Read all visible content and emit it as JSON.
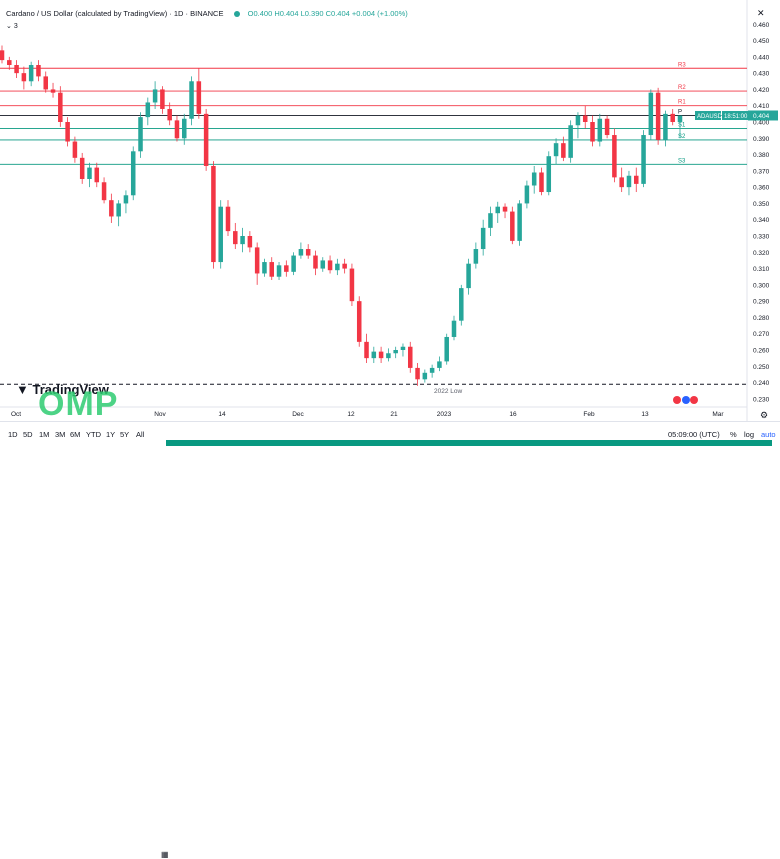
{
  "header": {
    "symbol_title": "Cardano / US Dollar (calculated by TradingView) · 1D · BINANCE",
    "ohlc": "O0.400 H0.404 L0.390 C0.404 +0.004 (+1.00%)",
    "indicator_count": "3"
  },
  "brand": {
    "logo_text": "TradingView",
    "watermark": "OMP"
  },
  "chart_data": {
    "type": "candlestick",
    "title": "Cardano / US Dollar (calculated by TradingView) · 1D · BINANCE",
    "ylim": [
      0.225,
      0.47
    ],
    "y_ticks": [
      0.23,
      0.24,
      0.25,
      0.26,
      0.27,
      0.28,
      0.29,
      0.3,
      0.31,
      0.32,
      0.33,
      0.34,
      0.35,
      0.36,
      0.37,
      0.38,
      0.39,
      0.4,
      0.41,
      0.42,
      0.43,
      0.44,
      0.45,
      0.46
    ],
    "x_ticks": [
      "Oct",
      "Nov",
      "14",
      "Dec",
      "12",
      "21",
      "2023",
      "16",
      "Feb",
      "13",
      "Mar"
    ],
    "up_color": "#26a69a",
    "down_color": "#f23645",
    "price_label": "ADAUSD",
    "last_price": "0.404",
    "countdown": "18:51:00",
    "pivot_lines": [
      {
        "label": "R3",
        "value": 0.433,
        "color": "#f23645"
      },
      {
        "label": "R2",
        "value": 0.419,
        "color": "#f23645"
      },
      {
        "label": "R1",
        "value": 0.41,
        "color": "#f23645"
      },
      {
        "label": "P",
        "value": 0.404,
        "color": "#131722"
      },
      {
        "label": "S1",
        "value": 0.396,
        "color": "#089981"
      },
      {
        "label": "S2",
        "value": 0.389,
        "color": "#089981"
      },
      {
        "label": "S3",
        "value": 0.374,
        "color": "#089981"
      }
    ],
    "annotation": {
      "label": "2022 Low",
      "value": 0.239
    },
    "candles": [
      [
        0.444,
        0.447,
        0.436,
        0.438
      ],
      [
        0.438,
        0.44,
        0.432,
        0.435
      ],
      [
        0.435,
        0.438,
        0.427,
        0.43
      ],
      [
        0.43,
        0.434,
        0.42,
        0.425
      ],
      [
        0.425,
        0.437,
        0.422,
        0.435
      ],
      [
        0.435,
        0.438,
        0.425,
        0.428
      ],
      [
        0.428,
        0.431,
        0.418,
        0.42
      ],
      [
        0.42,
        0.424,
        0.415,
        0.418
      ],
      [
        0.418,
        0.422,
        0.397,
        0.4
      ],
      [
        0.4,
        0.403,
        0.385,
        0.388
      ],
      [
        0.388,
        0.391,
        0.375,
        0.378
      ],
      [
        0.378,
        0.381,
        0.362,
        0.365
      ],
      [
        0.365,
        0.375,
        0.36,
        0.372
      ],
      [
        0.372,
        0.375,
        0.36,
        0.363
      ],
      [
        0.363,
        0.366,
        0.35,
        0.352
      ],
      [
        0.352,
        0.356,
        0.338,
        0.342
      ],
      [
        0.342,
        0.352,
        0.336,
        0.35
      ],
      [
        0.35,
        0.358,
        0.344,
        0.355
      ],
      [
        0.355,
        0.385,
        0.352,
        0.382
      ],
      [
        0.382,
        0.406,
        0.378,
        0.403
      ],
      [
        0.403,
        0.415,
        0.398,
        0.412
      ],
      [
        0.412,
        0.425,
        0.408,
        0.42
      ],
      [
        0.42,
        0.422,
        0.405,
        0.408
      ],
      [
        0.408,
        0.412,
        0.398,
        0.401
      ],
      [
        0.401,
        0.404,
        0.388,
        0.39
      ],
      [
        0.39,
        0.405,
        0.386,
        0.402
      ],
      [
        0.402,
        0.428,
        0.398,
        0.425
      ],
      [
        0.425,
        0.433,
        0.402,
        0.405
      ],
      [
        0.405,
        0.408,
        0.37,
        0.373
      ],
      [
        0.373,
        0.376,
        0.31,
        0.314
      ],
      [
        0.314,
        0.352,
        0.31,
        0.348
      ],
      [
        0.348,
        0.352,
        0.33,
        0.333
      ],
      [
        0.333,
        0.338,
        0.322,
        0.325
      ],
      [
        0.325,
        0.335,
        0.32,
        0.33
      ],
      [
        0.33,
        0.333,
        0.32,
        0.323
      ],
      [
        0.323,
        0.326,
        0.3,
        0.307
      ],
      [
        0.307,
        0.316,
        0.305,
        0.314
      ],
      [
        0.314,
        0.317,
        0.303,
        0.305
      ],
      [
        0.305,
        0.314,
        0.303,
        0.312
      ],
      [
        0.312,
        0.315,
        0.305,
        0.308
      ],
      [
        0.308,
        0.32,
        0.306,
        0.318
      ],
      [
        0.318,
        0.326,
        0.316,
        0.322
      ],
      [
        0.322,
        0.325,
        0.316,
        0.318
      ],
      [
        0.318,
        0.321,
        0.306,
        0.31
      ],
      [
        0.31,
        0.317,
        0.308,
        0.315
      ],
      [
        0.315,
        0.318,
        0.307,
        0.309
      ],
      [
        0.309,
        0.316,
        0.306,
        0.313
      ],
      [
        0.313,
        0.316,
        0.307,
        0.31
      ],
      [
        0.31,
        0.313,
        0.287,
        0.29
      ],
      [
        0.29,
        0.293,
        0.262,
        0.265
      ],
      [
        0.265,
        0.27,
        0.252,
        0.255
      ],
      [
        0.255,
        0.262,
        0.252,
        0.259
      ],
      [
        0.259,
        0.262,
        0.252,
        0.255
      ],
      [
        0.255,
        0.261,
        0.253,
        0.258
      ],
      [
        0.258,
        0.262,
        0.255,
        0.26
      ],
      [
        0.26,
        0.264,
        0.256,
        0.262
      ],
      [
        0.262,
        0.265,
        0.246,
        0.249
      ],
      [
        0.249,
        0.252,
        0.238,
        0.242
      ],
      [
        0.242,
        0.248,
        0.24,
        0.246
      ],
      [
        0.246,
        0.251,
        0.243,
        0.249
      ],
      [
        0.249,
        0.256,
        0.247,
        0.253
      ],
      [
        0.253,
        0.27,
        0.251,
        0.268
      ],
      [
        0.268,
        0.281,
        0.266,
        0.278
      ],
      [
        0.278,
        0.3,
        0.275,
        0.298
      ],
      [
        0.298,
        0.316,
        0.294,
        0.313
      ],
      [
        0.313,
        0.326,
        0.31,
        0.322
      ],
      [
        0.322,
        0.34,
        0.318,
        0.335
      ],
      [
        0.335,
        0.348,
        0.33,
        0.344
      ],
      [
        0.344,
        0.351,
        0.338,
        0.348
      ],
      [
        0.348,
        0.35,
        0.341,
        0.345
      ],
      [
        0.345,
        0.348,
        0.325,
        0.327
      ],
      [
        0.327,
        0.352,
        0.324,
        0.35
      ],
      [
        0.35,
        0.364,
        0.347,
        0.361
      ],
      [
        0.361,
        0.373,
        0.356,
        0.369
      ],
      [
        0.369,
        0.372,
        0.355,
        0.357
      ],
      [
        0.357,
        0.382,
        0.355,
        0.379
      ],
      [
        0.379,
        0.39,
        0.374,
        0.387
      ],
      [
        0.387,
        0.391,
        0.376,
        0.378
      ],
      [
        0.378,
        0.401,
        0.375,
        0.398
      ],
      [
        0.398,
        0.406,
        0.39,
        0.404
      ],
      [
        0.404,
        0.41,
        0.396,
        0.4
      ],
      [
        0.4,
        0.404,
        0.385,
        0.388
      ],
      [
        0.388,
        0.405,
        0.385,
        0.402
      ],
      [
        0.402,
        0.404,
        0.39,
        0.392
      ],
      [
        0.392,
        0.396,
        0.363,
        0.366
      ],
      [
        0.366,
        0.372,
        0.357,
        0.36
      ],
      [
        0.36,
        0.37,
        0.355,
        0.367
      ],
      [
        0.367,
        0.372,
        0.357,
        0.362
      ],
      [
        0.362,
        0.395,
        0.36,
        0.392
      ],
      [
        0.392,
        0.42,
        0.389,
        0.418
      ],
      [
        0.418,
        0.421,
        0.386,
        0.389
      ],
      [
        0.389,
        0.407,
        0.385,
        0.405
      ],
      [
        0.405,
        0.408,
        0.398,
        0.4
      ],
      [
        0.4,
        0.404,
        0.39,
        0.404
      ]
    ]
  },
  "bottom_bar": {
    "ranges": [
      "1D",
      "5D",
      "1M",
      "3M",
      "6M",
      "YTD",
      "1Y",
      "5Y",
      "All"
    ],
    "time": "05:09:00 (UTC)",
    "percent": "%",
    "log": "log",
    "auto": "auto"
  },
  "colors": {
    "accent_green": "#089981",
    "accent_red": "#f23645",
    "axis_text": "#131722"
  }
}
